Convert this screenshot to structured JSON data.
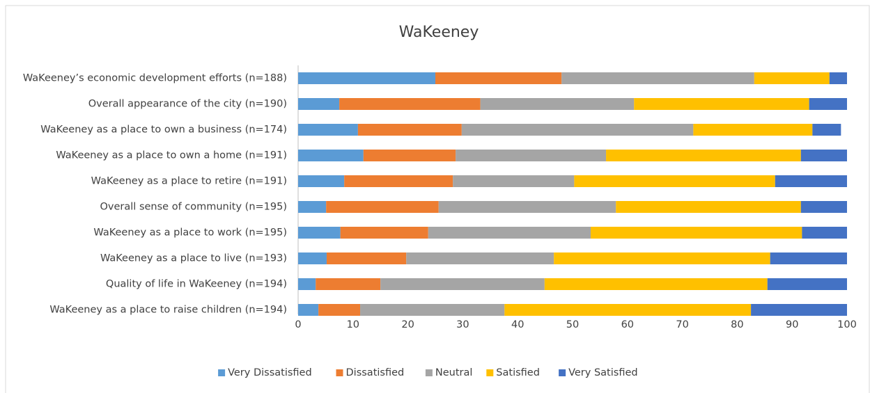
{
  "chart_data": {
    "type": "stacked_bar_horizontal",
    "title": "WaKeeney",
    "categories": [
      "WaKeeney’s economic development efforts (n=188)",
      "Overall appearance of the city (n=190)",
      "WaKeeney as a place to own a business (n=174)",
      "WaKeeney as a place to own a home (n=191)",
      "WaKeeney as a place to retire (n=191)",
      "Overall sense of community (n=195)",
      "WaKeeney as a place to work (n=195)",
      "WaKeeney as a place to live (n=193)",
      "Quality of life in WaKeeney (n=194)",
      "WaKeeney as a place to raise children (n=194)"
    ],
    "series": [
      {
        "name": "Very Dissatisfied",
        "color": "#5b9bd5",
        "values": [
          25.0,
          7.5,
          10.9,
          11.9,
          8.4,
          5.1,
          7.7,
          5.2,
          3.2,
          3.7
        ]
      },
      {
        "name": "Dissatisfied",
        "color": "#ed7d31",
        "values": [
          23.0,
          25.7,
          18.9,
          16.8,
          19.8,
          20.5,
          16.0,
          14.5,
          11.8,
          7.6
        ]
      },
      {
        "name": "Neutral",
        "color": "#a5a5a5",
        "values": [
          35.1,
          28.0,
          42.2,
          27.4,
          22.1,
          32.3,
          29.6,
          26.9,
          29.9,
          26.3
        ]
      },
      {
        "name": "Satisfied",
        "color": "#ffc000",
        "values": [
          13.7,
          31.9,
          21.7,
          35.5,
          36.6,
          33.7,
          38.5,
          39.4,
          40.6,
          44.9
        ]
      },
      {
        "name": "Very Satisfied",
        "color": "#4472c4",
        "values": [
          3.2,
          6.9,
          5.2,
          8.4,
          13.1,
          8.4,
          8.2,
          14.0,
          14.5,
          17.5
        ]
      }
    ],
    "xlim": [
      0,
      100
    ],
    "xticks": [
      0,
      10,
      20,
      30,
      40,
      50,
      60,
      70,
      80,
      90,
      100
    ],
    "grid": false,
    "legend": "bottom"
  }
}
